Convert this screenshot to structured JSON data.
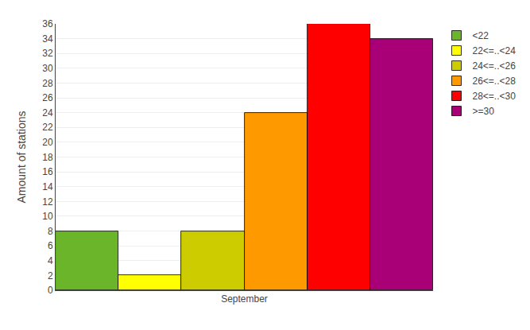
{
  "chart_data": {
    "type": "bar",
    "categories": [
      "September"
    ],
    "series": [
      {
        "name": "<22",
        "color": "#6ab52a",
        "values": [
          8
        ]
      },
      {
        "name": "22<=..<24",
        "color": "#ffff00",
        "values": [
          2
        ]
      },
      {
        "name": "24<=..<26",
        "color": "#cccc00",
        "values": [
          8
        ]
      },
      {
        "name": "26<=..<28",
        "color": "#ff9900",
        "values": [
          24
        ]
      },
      {
        "name": "28<=..<30",
        "color": "#ff0000",
        "values": [
          36
        ]
      },
      {
        "name": ">=30",
        "color": "#aa0077",
        "values": [
          34
        ]
      }
    ],
    "ylabel": "Amount of stations",
    "ylim": [
      0,
      36
    ],
    "yticks": [
      0,
      2,
      4,
      6,
      8,
      10,
      12,
      14,
      16,
      18,
      20,
      22,
      24,
      26,
      28,
      30,
      32,
      34,
      36
    ],
    "grid": true,
    "legend": "right"
  }
}
